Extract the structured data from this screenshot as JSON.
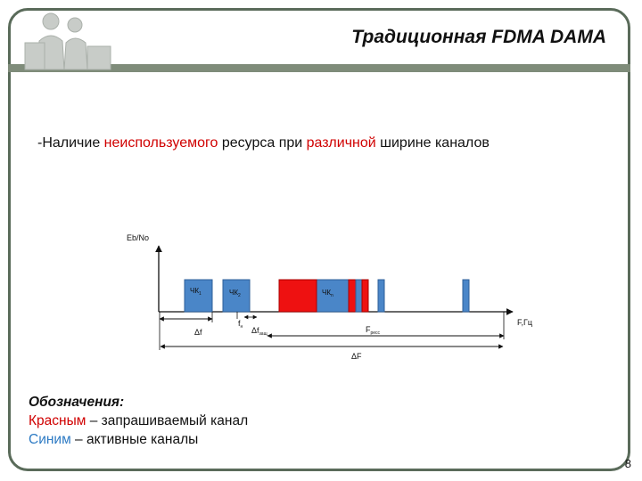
{
  "header": {
    "title": "Традиционная FDMA DAMA"
  },
  "statement": {
    "prefix": "-Наличие ",
    "highlight1": "неиспользуемого",
    "middle": " ресурса при ",
    "highlight2": "различной",
    "suffix": " ширине каналов"
  },
  "diagram": {
    "y_axis_label": "Eb/No",
    "x_axis_label": "F,Гц",
    "channel_labels": {
      "ch1": "ЧК",
      "ch1_sub": "1",
      "ch2": "ЧК",
      "ch2_sub": "2",
      "chn": "ЧК",
      "chn_sub": "n"
    },
    "delta_f": "Δf",
    "f_label": "f",
    "f_sub": "н",
    "delta_f_guard": "Δf",
    "delta_f_guard_sub": "защ",
    "f_res": "F",
    "f_res_sub": "ресс",
    "delta_F": "ΔF"
  },
  "legend": {
    "title": "Обозначения:",
    "red_word": "Красным",
    "red_rest": " – запрашиваемый канал",
    "blue_word": "Синим",
    "blue_rest": " – активные каналы"
  },
  "footer": {
    "page_number": "8"
  },
  "colors": {
    "active": "#4a86c8",
    "requested": "#ee1111",
    "legend_red": "#d00000",
    "legend_blue": "#2e7bc4"
  }
}
